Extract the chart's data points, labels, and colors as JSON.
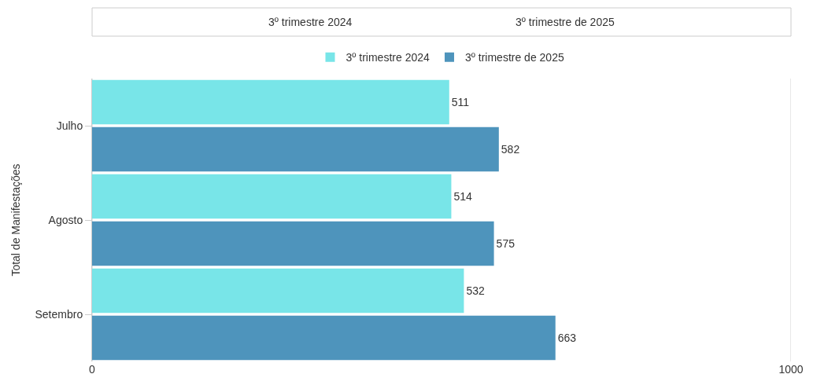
{
  "chart_data": {
    "type": "bar",
    "orientation": "horizontal",
    "ylabel": "Total de Manifestações",
    "annotations": [
      "3º trimestre 2024",
      "3º trimestre de 2025"
    ],
    "categories": [
      "Julho",
      "Agosto",
      "Setembro"
    ],
    "series": [
      {
        "name": "3º trimestre 2024",
        "color": "#78e5e8",
        "values": [
          511,
          514,
          532
        ]
      },
      {
        "name": "3º trimestre de 2025",
        "color": "#4e94bc",
        "values": [
          582,
          575,
          663
        ]
      }
    ],
    "xlim": [
      0,
      1000
    ],
    "xticks": [
      0,
      1000
    ],
    "grid": "x",
    "legend": "top",
    "data_labels": true
  }
}
